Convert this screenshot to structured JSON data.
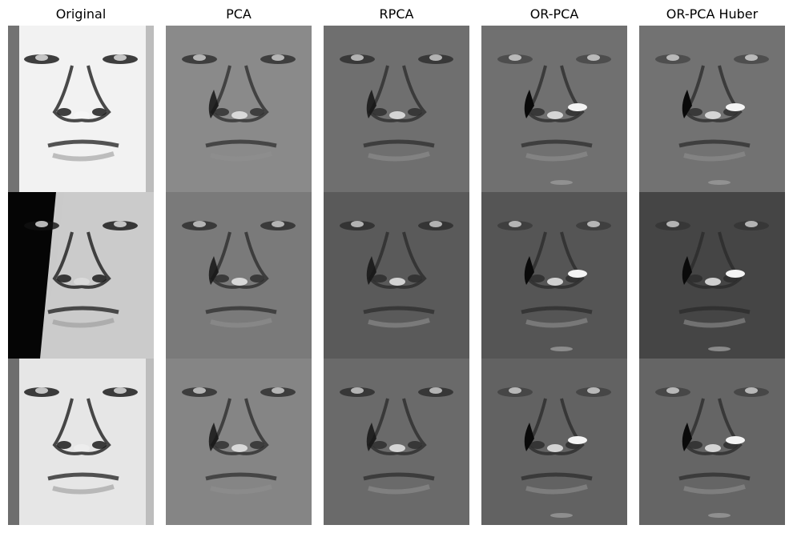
{
  "figure": {
    "columns": [
      {
        "title": "Original",
        "style": "original",
        "shades": [
          "#f2f2f2",
          "#0d0d0d",
          "#e6e6e6"
        ]
      },
      {
        "title": "PCA",
        "style": "pca",
        "shades": [
          "#8a8a8a",
          "#7a7a7a",
          "#858585"
        ]
      },
      {
        "title": "RPCA",
        "style": "rpca",
        "shades": [
          "#6f6f6f",
          "#5a5a5a",
          "#6a6a6a"
        ]
      },
      {
        "title": "OR-PCA",
        "style": "orpca",
        "shades": [
          "#707070",
          "#555555",
          "#626262"
        ]
      },
      {
        "title": "OR-PCA Huber",
        "style": "huber",
        "shades": [
          "#727272",
          "#454545",
          "#656565"
        ]
      }
    ]
  }
}
